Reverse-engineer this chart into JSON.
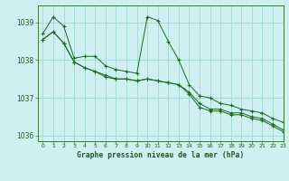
{
  "title": "Graphe pression niveau de la mer (hPa)",
  "background_color": "#cff0f0",
  "grid_color": "#a8dada",
  "line_color": "#1a6b1a",
  "xlim": [
    -0.5,
    23
  ],
  "ylim": [
    1035.85,
    1039.45
  ],
  "yticks": [
    1036,
    1037,
    1038,
    1039
  ],
  "xticks": [
    0,
    1,
    2,
    3,
    4,
    5,
    6,
    7,
    8,
    9,
    10,
    11,
    12,
    13,
    14,
    15,
    16,
    17,
    18,
    19,
    20,
    21,
    22,
    23
  ],
  "series": [
    [
      1038.7,
      1039.15,
      1038.9,
      1038.05,
      1038.1,
      1038.1,
      1037.85,
      1037.75,
      1037.7,
      1037.65,
      1039.15,
      1039.05,
      1038.5,
      1038.0,
      1037.35,
      1037.05,
      1037.0,
      1036.85,
      1036.8,
      1036.7,
      1036.65,
      1036.6,
      1036.45,
      1036.35
    ],
    [
      1038.55,
      1038.75,
      1038.45,
      1037.95,
      1037.8,
      1037.7,
      1037.55,
      1037.5,
      1037.5,
      1037.45,
      1037.5,
      1037.45,
      1037.4,
      1037.35,
      1037.15,
      1036.85,
      1036.7,
      1036.7,
      1036.6,
      1036.6,
      1036.5,
      1036.45,
      1036.3,
      1036.15
    ],
    [
      1038.55,
      1038.75,
      1038.45,
      1037.95,
      1037.8,
      1037.7,
      1037.6,
      1037.5,
      1037.5,
      1037.45,
      1037.5,
      1037.45,
      1037.4,
      1037.35,
      1037.1,
      1036.75,
      1036.65,
      1036.65,
      1036.55,
      1036.55,
      1036.45,
      1036.4,
      1036.25,
      1036.1
    ]
  ]
}
